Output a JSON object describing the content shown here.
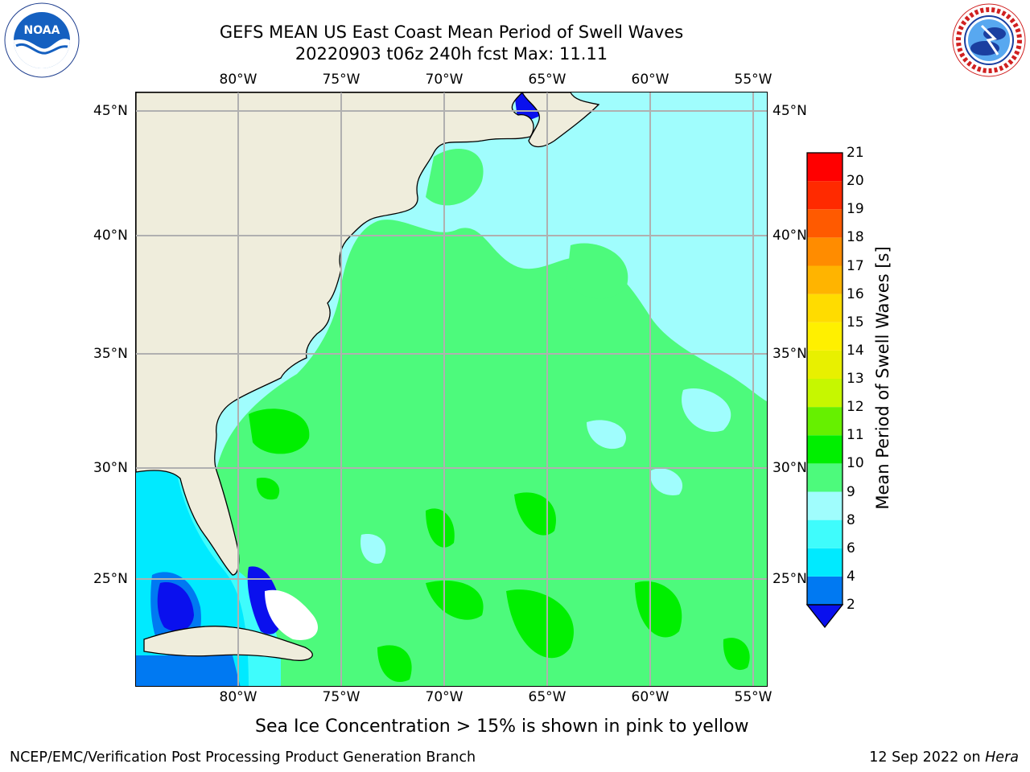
{
  "title": {
    "line1": "GEFS MEAN US East Coast Mean Period of Swell Waves",
    "line2": "20220903 t06z 240h fcst   Max: 11.11"
  },
  "map": {
    "lon_ticks": [
      "80°W",
      "75°W",
      "70°W",
      "65°W",
      "60°W",
      "55°W"
    ],
    "lat_ticks": [
      "45°N",
      "40°N",
      "35°N",
      "30°N",
      "25°N"
    ],
    "colors": {
      "land": "#efeddc",
      "ocean_8_9": "#a0fdfd",
      "ocean_9_10": "#4dfa7c",
      "ocean_10_11": "#00ef00",
      "ocean_6_8": "#3ffcfc",
      "ocean_4_6": "#00eaff",
      "ocean_2_4": "#0079f2",
      "ocean_lt_2": "#0a10ee",
      "gridline": "#b0b0b0"
    }
  },
  "colorbar": {
    "title": "Mean Period of Swell Waves [s]",
    "labels": [
      "2",
      "4",
      "6",
      "8",
      "9",
      "10",
      "11",
      "12",
      "13",
      "14",
      "15",
      "16",
      "17",
      "18",
      "19",
      "20",
      "21"
    ],
    "colors": [
      "#0a10ee",
      "#0079f2",
      "#00eaff",
      "#3ffcfc",
      "#a0fdfd",
      "#4dfa7c",
      "#00ef00",
      "#66f000",
      "#c6f700",
      "#e8f000",
      "#fff000",
      "#ffdc00",
      "#ffb400",
      "#ff8c00",
      "#ff5a00",
      "#ff2a00",
      "#ff0000"
    ]
  },
  "caption": "Sea Ice Concentration > 15% is shown in pink to yellow",
  "footer": {
    "left": "NCEP/EMC/Verification Post Processing Product Generation Branch",
    "right_date": "12 Sep 2022 on ",
    "right_host": "Hera"
  },
  "logos": {
    "noaa_text": "NOAA",
    "nws_text": "NATIONAL WEATHER SERVICE"
  }
}
